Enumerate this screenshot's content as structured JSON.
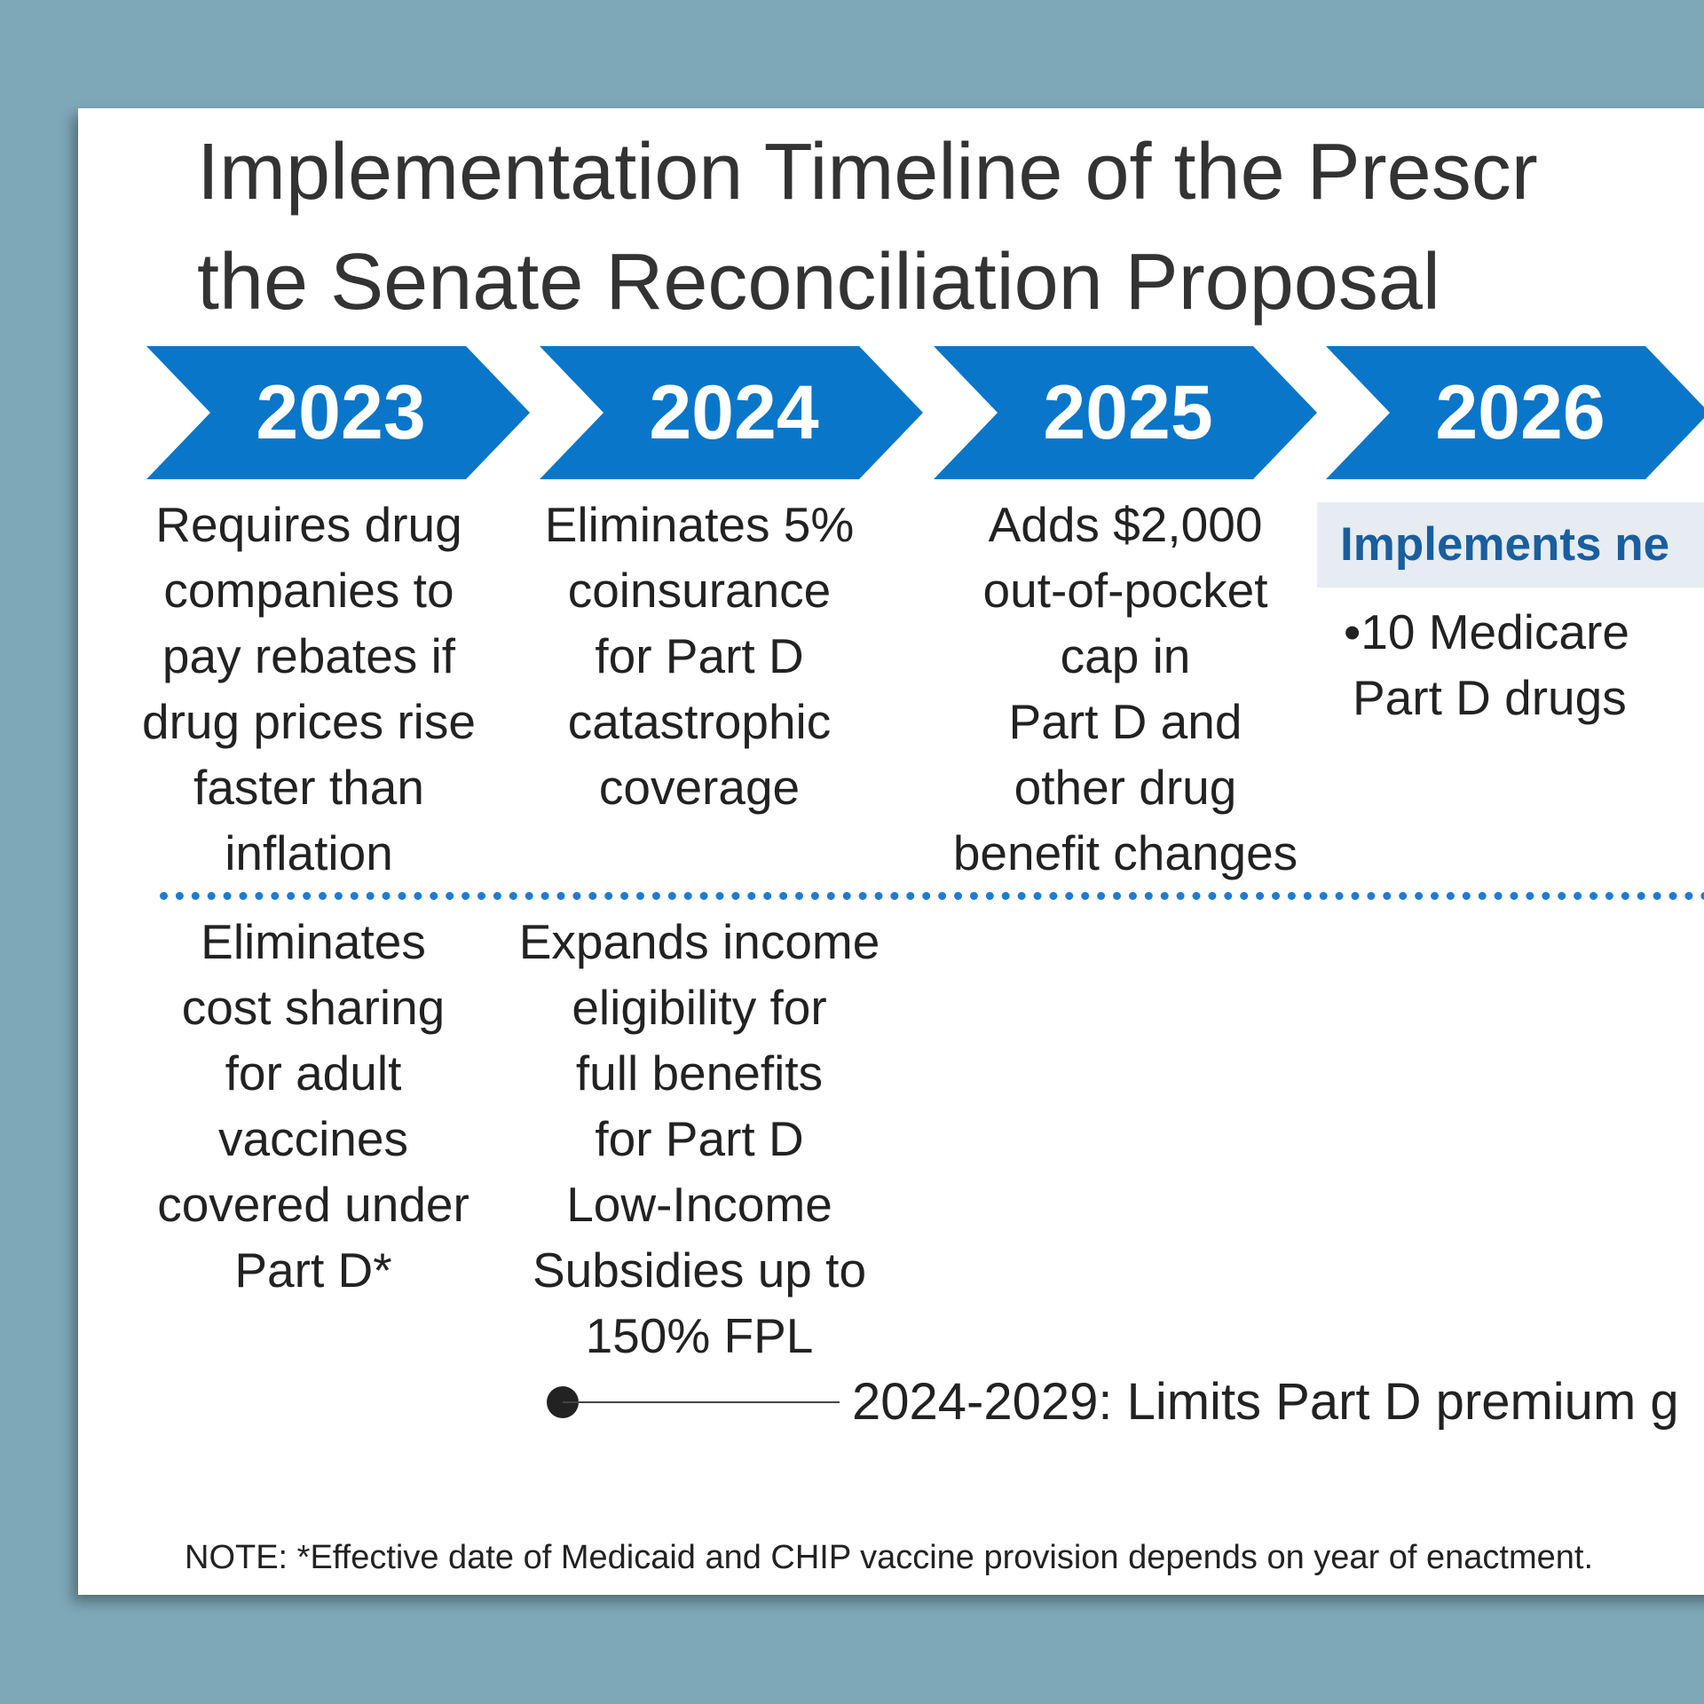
{
  "title": {
    "line1": "Implementation Timeline of the Prescr",
    "line2": "the Senate Reconciliation Proposal"
  },
  "years": [
    "2023",
    "2024",
    "2025",
    "2026"
  ],
  "upper": {
    "y2023": [
      "Requires drug",
      "companies to",
      "pay rebates if",
      "drug prices rise",
      "faster than",
      "inflation"
    ],
    "y2024": [
      "Eliminates 5%",
      "coinsurance",
      "for Part D",
      "catastrophic",
      "coverage"
    ],
    "y2025": [
      "Adds $2,000",
      "out-of-pocket",
      "cap in",
      "Part D and",
      "other drug",
      "benefit changes"
    ],
    "y2026_header": "Implements ne",
    "y2026_bullet": [
      "•10 Medicare",
      "Part D drugs"
    ]
  },
  "lower": {
    "y2023": [
      "Eliminates",
      "cost sharing",
      "for adult",
      "vaccines",
      "covered under",
      "Part D*"
    ],
    "y2024": [
      "Expands income",
      "eligibility for",
      "full benefits",
      "for Part D",
      "Low-Income",
      "Subsidies up to",
      "150% FPL"
    ]
  },
  "range_label": "2024-2029: Limits Part D premium g",
  "note": "NOTE: *Effective date of Medicaid and CHIP vaccine provision depends on year of enactment.",
  "colors": {
    "background": "#7ea8b7",
    "chevron": "#0a76c9",
    "divider": "#1f7bcf",
    "header_bg": "#e6ecf2",
    "header_text": "#1a5e9e"
  }
}
